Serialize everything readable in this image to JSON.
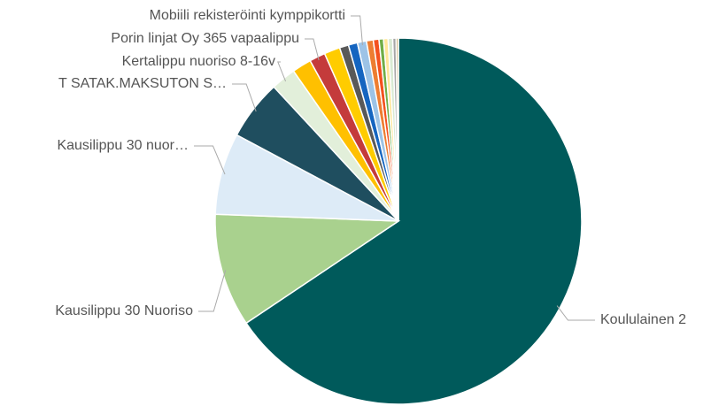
{
  "chart_data": {
    "type": "pie",
    "categories": [
      "Koululainen 2",
      "Kausilippu 30 Nuoriso",
      "Kausilippu 30 nuor…",
      "T SATAK.MAKSUTON S…",
      "Kertalippu nuoriso 8-16v",
      null,
      "Porin linjat Oy 365 vapaalippu",
      null,
      null,
      null,
      "Mobiili rekisteröinti kymppikortti",
      null,
      null,
      null,
      null,
      null,
      null,
      null
    ],
    "values": [
      65.6,
      10.0,
      7.2,
      5.3,
      2.2,
      1.7,
      1.4,
      1.4,
      0.8,
      0.8,
      0.8,
      0.6,
      0.5,
      0.4,
      0.4,
      0.4,
      0.3,
      0.2
    ],
    "colors": [
      "#005a5b",
      "#a9d18e",
      "#ddebf7",
      "#1f4e5f",
      "#e2efda",
      "#ffc000",
      "#c43b3b",
      "#ffcc00",
      "#595959",
      "#1565c0",
      "#9dc3e6",
      "#ed7d31",
      "#f4511e",
      "#70ad47",
      "#ffe699",
      "#d9ead3",
      "#a6a6a6",
      "#c9b27c"
    ]
  }
}
